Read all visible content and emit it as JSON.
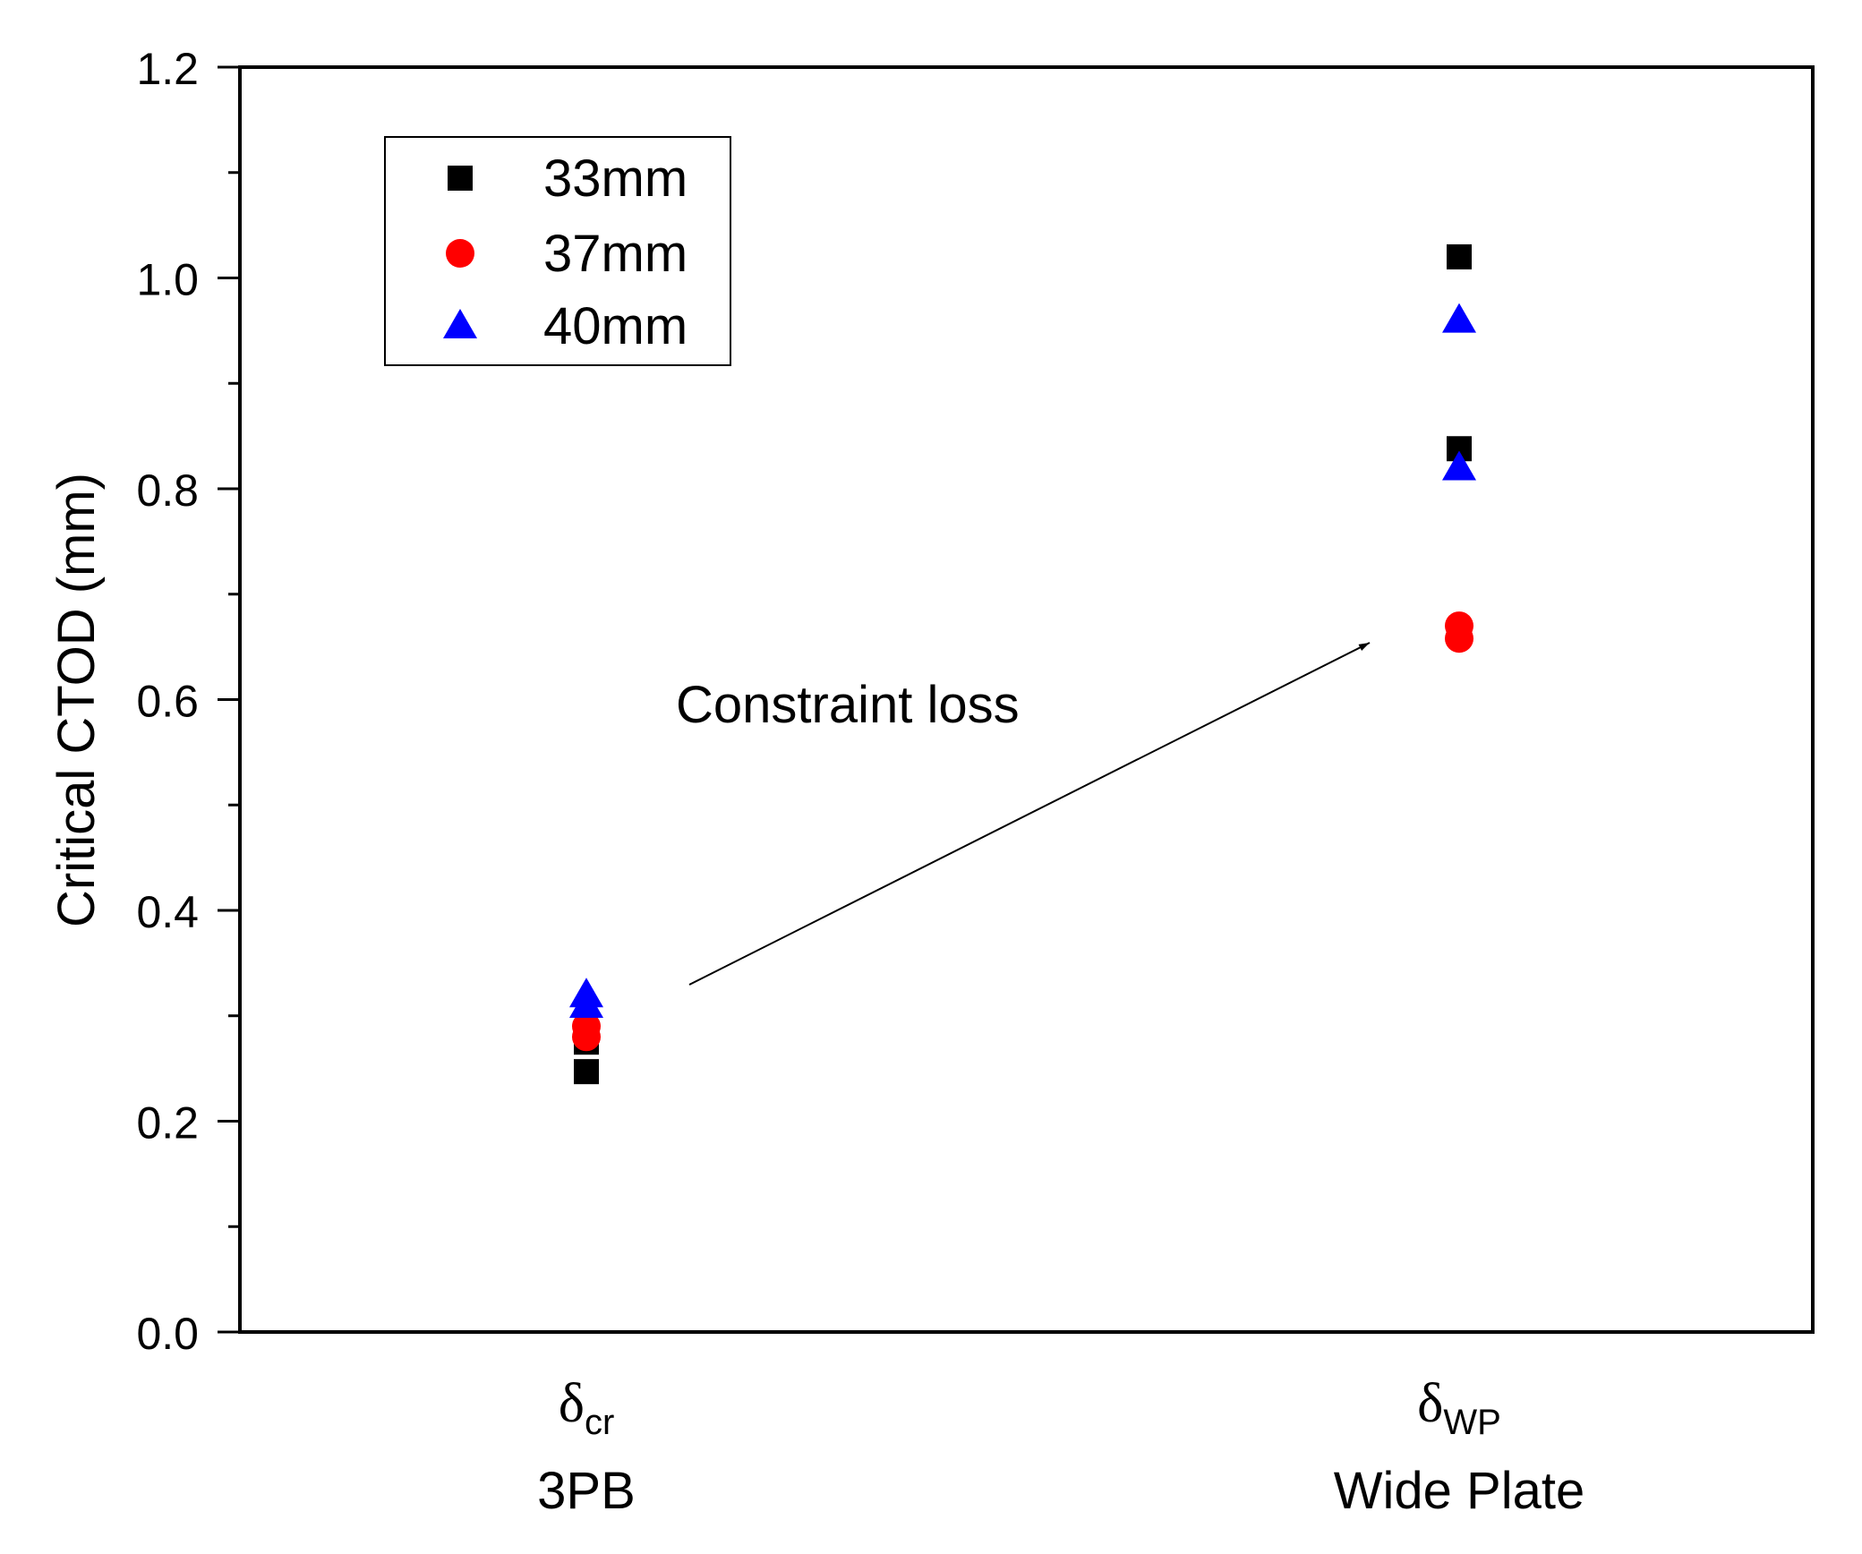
{
  "chart_data": {
    "type": "scatter",
    "ylabel": "Critical CTOD (mm)",
    "ylim": [
      0.0,
      1.2
    ],
    "y_ticks": [
      "0.0",
      "0.2",
      "0.4",
      "0.6",
      "0.8",
      "1.0",
      "1.2"
    ],
    "categories": [
      {
        "symbol": "δ",
        "subscript": "cr",
        "label": "3PB"
      },
      {
        "symbol": "δ",
        "subscript": "WP",
        "label": "Wide Plate"
      }
    ],
    "series": [
      {
        "name": "33mm",
        "marker": "square",
        "color": "#000000",
        "points": [
          {
            "category": 0,
            "values": [
              0.247,
              0.275
            ]
          },
          {
            "category": 1,
            "values": [
              1.02,
              0.838
            ]
          }
        ]
      },
      {
        "name": "37mm",
        "marker": "circle",
        "color": "#ff0000",
        "points": [
          {
            "category": 0,
            "values": [
              0.28,
              0.29
            ]
          },
          {
            "category": 1,
            "values": [
              0.67,
              0.658
            ]
          }
        ]
      },
      {
        "name": "40mm",
        "marker": "triangle",
        "color": "#0000ff",
        "points": [
          {
            "category": 0,
            "values": [
              0.31,
              0.32
            ]
          },
          {
            "category": 1,
            "values": [
              0.96,
              0.82
            ]
          }
        ]
      }
    ],
    "annotation": {
      "text": "Constraint loss"
    },
    "legend_position": "top-left"
  }
}
